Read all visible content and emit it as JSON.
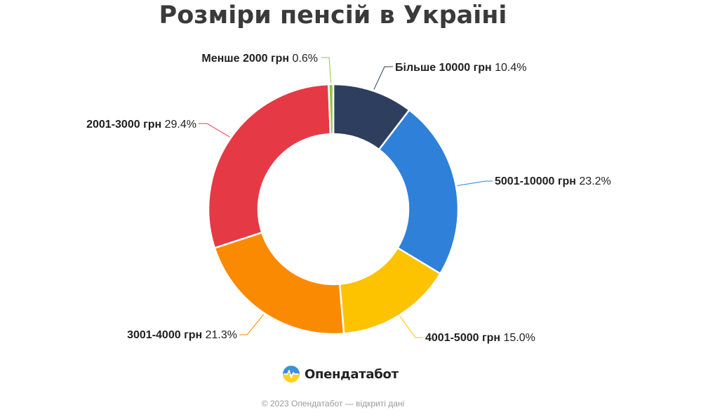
{
  "header": {
    "title": "Розміри пенсій в Україні"
  },
  "chart_data": {
    "type": "pie",
    "variant": "donut",
    "title": "Розміри пенсій в Україні",
    "unit": "%",
    "legend": "none",
    "slices": [
      {
        "label": "Більше 10000 грн",
        "value": 10.4,
        "value_label": "10.4%",
        "color": "#2d3e5e"
      },
      {
        "label": "5001-10000 грн",
        "value": 23.2,
        "value_label": "23.2%",
        "color": "#2f80d9"
      },
      {
        "label": "4001-5000 грн",
        "value": 15.0,
        "value_label": "15.0%",
        "color": "#fdc200"
      },
      {
        "label": "3001-4000 грн",
        "value": 21.3,
        "value_label": "21.3%",
        "color": "#fb8a03"
      },
      {
        "label": "2001-3000 грн",
        "value": 29.4,
        "value_label": "29.4%",
        "color": "#e63946"
      },
      {
        "label": "Менше 2000 грн",
        "value": 0.6,
        "value_label": "0.6%",
        "color": "#8dc63f"
      }
    ]
  },
  "brand": {
    "name": "Опендатабот",
    "icon": "opendatabot-logo-icon"
  },
  "footer": {
    "text": "© 2023 Опендатабот — відкриті дані"
  }
}
